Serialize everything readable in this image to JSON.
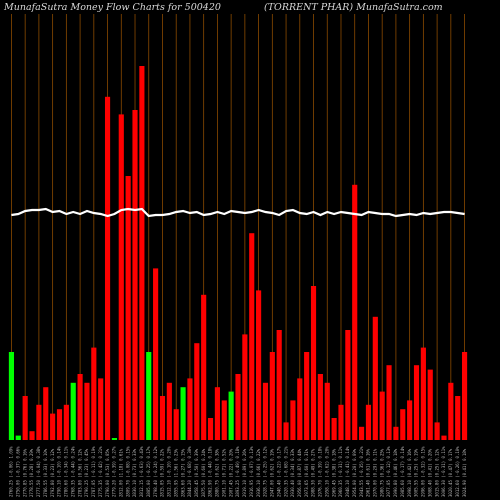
{
  "chart_data": {
    "type": "bar",
    "title_left": "MunafaSutra  Money Flow  Charts for 500420",
    "title_right": "(TORRENT PHAR) MunafaSutra.com",
    "colors": {
      "up": "#00ff00",
      "down": "#ff0000",
      "line": "#ffffff",
      "grid": "#8a4a00",
      "background": "#000000"
    },
    "categories": [
      "2021-07-06",
      "2021-07-07",
      "2021-07-08",
      "2021-07-09",
      "2021-07-12",
      "2021-07-13",
      "2021-07-14",
      "2021-07-15",
      "2021-07-16",
      "2021-07-19",
      "2021-07-20",
      "2021-07-22",
      "2021-07-23",
      "2021-07-26",
      "2021-07-27",
      "2021-07-28",
      "2021-07-29",
      "2021-07-30",
      "2021-08-02",
      "2021-08-03",
      "2021-08-04",
      "2021-08-05",
      "2021-08-06",
      "2021-08-09",
      "2021-08-10",
      "2021-08-11",
      "2021-08-12",
      "2021-08-13",
      "2021-08-16",
      "2021-08-17",
      "2021-08-18",
      "2021-08-20",
      "2021-08-23",
      "2021-08-24",
      "2021-08-25",
      "2021-08-26",
      "2021-08-27",
      "2021-08-30",
      "2021-08-31",
      "2021-09-01",
      "2021-09-02",
      "2021-09-03",
      "2021-09-06",
      "2021-09-07",
      "2021-09-08",
      "2021-09-09",
      "2021-09-13",
      "2021-09-14",
      "2021-09-15",
      "2021-09-16",
      "2021-09-17",
      "2021-09-20",
      "2021-09-21",
      "2021-09-22",
      "2021-09-23",
      "2021-09-24",
      "2021-09-27",
      "2021-09-28",
      "2021-09-29",
      "2021-09-30",
      "2021-10-01",
      "2021-10-04",
      "2021-10-05",
      "2021-10-06",
      "2021-10-07",
      "2021-10-08",
      "2021-10-11"
    ],
    "tick_labels": [
      "2760.25 (-0.06) 1.09%",
      "2750.00 (-0.37) 0.66%",
      "2770.85 (0.76) 0.16%",
      "2778.55 (0.28) 0.29%",
      "2777.50 (-0.04) 0.38%",
      "2786.55 (0.33) 0.10%",
      "2792.80 (0.23) 0.12%",
      "2790.10 (-0.10) 0.14%",
      "2780.60 (-0.34) 0.11%",
      "2768.35 (-0.44) 0.24%",
      "2783.80 (0.56) 0.12%",
      "2790.25 (0.23) 0.45%",
      "2787.05 (-0.11) 0.19%",
      "2775.35 (-0.42) 0.21%",
      "2790.00 (0.53) 0.05%",
      "2779.20 (-0.39) 0.27%",
      "2812.00 (1.18) 0.61%",
      "2809.70 (-0.08) 0.15%",
      "2830.10 (0.73) 0.33%",
      "2812.15 (-0.63) 0.43%",
      "2805.00 (-0.25) 0.17%",
      "2798.40 (-0.24) 0.12%",
      "2815.05 (0.59) 0.22%",
      "2812.10 (-0.10) 0.20%",
      "2855.95 (1.56) 0.23%",
      "2863.60 (0.27) 0.15%",
      "2844.20 (-0.68) 0.30%",
      "2858.45 (0.50) 0.39%",
      "2875.50 (0.60) 0.24%",
      "2862.90 (-0.44) 0.18%",
      "2880.75 (0.62) 0.38%",
      "2901.10 (0.71) 0.52%",
      "2907.45 (0.22) 0.20%",
      "2893.25 (-0.49) 0.18%",
      "2919.10 (0.89) 0.26%",
      "2916.95 (-0.07) 0.13%",
      "2936.10 (0.66) 0.22%",
      "2928.75 (-0.25) 0.12%",
      "2947.00 (0.62) 0.19%",
      "2940.40 (-0.22) 0.17%",
      "2920.35 (-0.68) 0.21%",
      "2930.40 (0.34) 0.33%",
      "2956.00 (0.87) 0.44%",
      "2973.65 (0.60) 0.31%",
      "2988.30 (0.49) 0.27%",
      "2976.70 (-0.39) 0.18%",
      "2958.10 (-0.62) 0.20%",
      "2969.45 (0.38) 0.18%",
      "2960.35 (-0.31) 0.11%",
      "2948.10 (-0.41) 0.14%",
      "2954.00 (0.20) 0.09%",
      "2943.55 (-0.35) 0.21%",
      "2961.40 (0.61) 0.16%",
      "2970.00 (0.29) 0.11%",
      "2980.75 (0.36) 0.25%",
      "2977.05 (-0.12) 0.13%",
      "2990.80 (0.46) 0.18%",
      "2985.60 (-0.17) 0.14%",
      "2998.10 (0.42) 0.16%",
      "3005.55 (0.25) 0.19%",
      "2996.00 (-0.32) 0.15%",
      "3008.40 (0.41) 0.20%",
      "3015.80 (0.25) 0.12%",
      "3006.30 (-0.31) 0.11%",
      "3020.45 (0.47) 0.17%",
      "3012.60 (-0.26) 0.10%",
      "3024.90 (0.41) 0.18%"
    ],
    "values": [
      20,
      1,
      -10,
      -2,
      -8,
      -12,
      -6,
      -7,
      -8,
      13,
      -15,
      -13,
      -21,
      -14,
      -78,
      0,
      -74,
      -60,
      -75,
      -85,
      20,
      -39,
      -10,
      -13,
      -7,
      12,
      -14,
      -22,
      -33,
      -5,
      -12,
      -9,
      11,
      -15,
      -24,
      -47,
      -34,
      -13,
      -20,
      -25,
      -4,
      -9,
      -14,
      -20,
      -35,
      -15,
      -13,
      -5,
      -8,
      -25,
      -58,
      -3,
      -8,
      -28,
      -11,
      -17,
      -3,
      -7,
      -9,
      -17,
      -21,
      -16,
      -4,
      -1,
      -13,
      -10,
      -20
    ],
    "line": [
      215,
      214,
      211,
      210,
      210,
      209,
      212,
      211,
      214,
      212,
      214,
      211,
      213,
      214,
      216,
      214,
      210,
      209,
      210,
      209,
      216,
      215,
      215,
      214,
      212,
      211,
      213,
      212,
      215,
      214,
      212,
      214,
      211,
      212,
      213,
      212,
      210,
      212,
      213,
      215,
      211,
      210,
      213,
      214,
      212,
      215,
      212,
      214,
      212,
      213,
      214,
      215,
      212,
      213,
      214,
      214,
      216,
      215,
      214,
      215,
      213,
      214,
      213,
      212,
      212,
      213,
      214
    ]
  }
}
